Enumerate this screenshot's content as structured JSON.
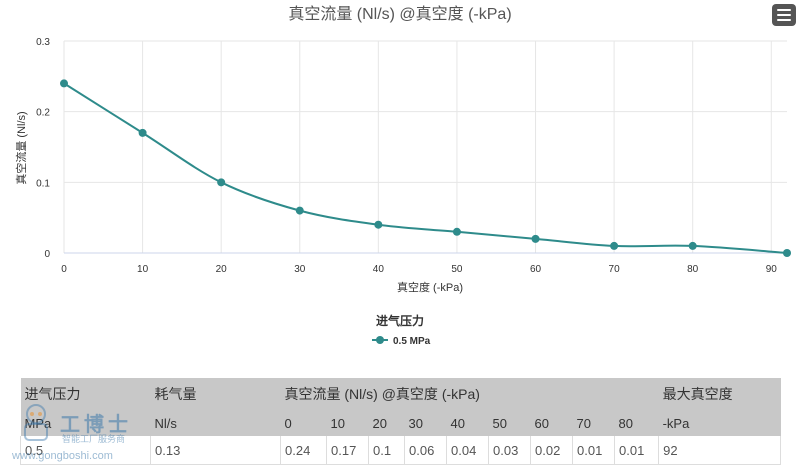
{
  "chart_data": {
    "type": "line",
    "title": "真空流量 (Nl/s) @真空度 (-kPa)",
    "xlabel": "真空度 (-kPa)",
    "ylabel": "真空流量 (Nl/s)",
    "xlim": [
      0,
      92
    ],
    "ylim": [
      0,
      0.3
    ],
    "x_ticks": [
      "0",
      "10",
      "20",
      "30",
      "40",
      "50",
      "60",
      "70",
      "80",
      "90"
    ],
    "y_ticks": [
      "0",
      "0.1",
      "0.2",
      "0.3"
    ],
    "grid": true,
    "legend_title": "进气压力",
    "legend_position": "bottom-center",
    "series": [
      {
        "name": "0.5 MPa",
        "color": "#2e8b8b",
        "x": [
          0,
          10,
          20,
          30,
          40,
          50,
          60,
          70,
          80,
          92
        ],
        "y": [
          0.24,
          0.17,
          0.1,
          0.06,
          0.04,
          0.03,
          0.02,
          0.01,
          0.01,
          0
        ]
      }
    ]
  },
  "table": {
    "header1": {
      "pressure": "进气压力",
      "consumption": "耗气量",
      "flow": "真空流量 (Nl/s) @真空度 (-kPa)",
      "max_vacuum": "最大真空度"
    },
    "header2": [
      "MPa",
      "Nl/s",
      "0",
      "10",
      "20",
      "30",
      "40",
      "50",
      "60",
      "70",
      "80",
      "-kPa"
    ],
    "rows": [
      [
        "0.5",
        "0.13",
        "0.24",
        "0.17",
        "0.1",
        "0.06",
        "0.04",
        "0.03",
        "0.02",
        "0.01",
        "0.01",
        "92"
      ]
    ]
  },
  "watermark": {
    "brand": "工博士",
    "tagline": "智能工厂服务商",
    "url": "www.gongboshi.com"
  },
  "icons": {
    "menu": "hamburger-menu-icon"
  }
}
